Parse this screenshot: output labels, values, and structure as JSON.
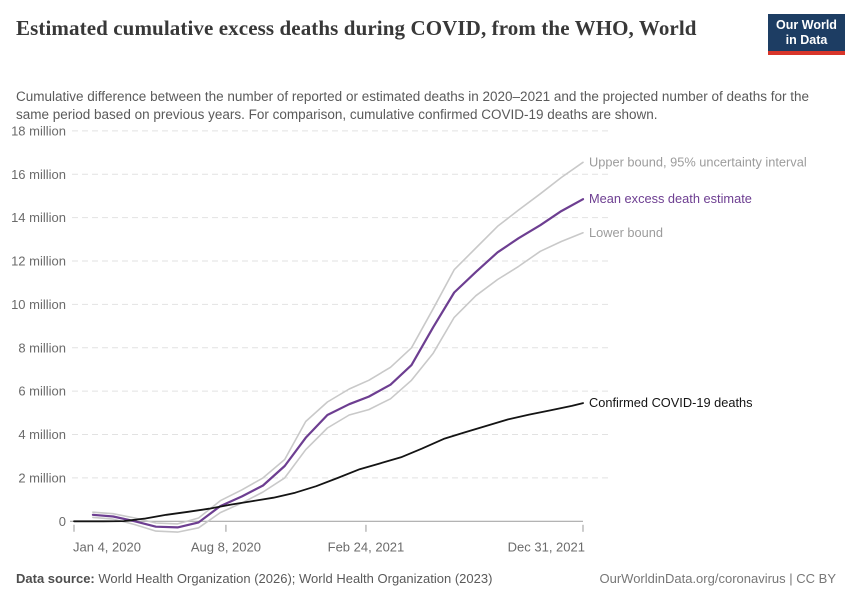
{
  "header": {
    "title": "Estimated cumulative excess deaths during COVID, from the WHO, World",
    "subtitle": "Cumulative difference between the number of reported or estimated deaths in 2020–2021 and the projected number of deaths for the same period based on previous years. For comparison, cumulative confirmed COVID-19 deaths are shown.",
    "logo": {
      "line1": "Our World",
      "line2": "in Data",
      "bg_color": "#1d3d63",
      "accent_color": "#d8352a"
    }
  },
  "footer": {
    "data_source_label": "Data source:",
    "data_source_value": " World Health Organization (2026); World Health Organization (2023)",
    "attribution": "OurWorldinData.org/coronavirus | CC BY"
  },
  "chart_data": {
    "type": "line",
    "title": "Estimated cumulative excess deaths during COVID, from the WHO, World",
    "xlabel": "",
    "ylabel": "",
    "y_unit": "million deaths",
    "ylim": [
      -0.6,
      18
    ],
    "grid": "horizontal-dashed",
    "legend_position": "labels-at-line-ends",
    "colors": {
      "gridline": "#e2e2e2",
      "zero_line": "#a8a8a8",
      "tick_text": "#6b6b6b",
      "bound_line": "#c9c9c9",
      "bound_label": "#9c9c9c",
      "mean_line": "#6d3e91",
      "confirmed_line": "#141414"
    },
    "y_ticks": [
      {
        "value": 0,
        "label": "0"
      },
      {
        "value": 2,
        "label": "2 million"
      },
      {
        "value": 4,
        "label": "4 million"
      },
      {
        "value": 6,
        "label": "6 million"
      },
      {
        "value": 8,
        "label": "8 million"
      },
      {
        "value": 10,
        "label": "10 million"
      },
      {
        "value": 12,
        "label": "12 million"
      },
      {
        "value": 14,
        "label": "14 million"
      },
      {
        "value": 16,
        "label": "16 million"
      },
      {
        "value": 18,
        "label": "18 million"
      }
    ],
    "x_ticks": [
      {
        "label": "Jan 4, 2020",
        "date": "2020-01-04",
        "align": "start"
      },
      {
        "label": "Aug 8, 2020",
        "date": "2020-08-08",
        "align": "middle"
      },
      {
        "label": "Feb 24, 2021",
        "date": "2021-02-24",
        "align": "middle"
      },
      {
        "label": "Dec 31, 2021",
        "date": "2021-12-31",
        "align": "end"
      }
    ],
    "series": [
      {
        "name": "Upper bound, 95% uncertainty interval",
        "color": "#c9c9c9",
        "label_color": "#9c9c9c",
        "width": 1.6,
        "points": [
          [
            "2020-01-31",
            0.42
          ],
          [
            "2020-02-29",
            0.35
          ],
          [
            "2020-03-31",
            0.15
          ],
          [
            "2020-04-30",
            -0.08
          ],
          [
            "2020-05-31",
            -0.12
          ],
          [
            "2020-06-30",
            0.15
          ],
          [
            "2020-07-31",
            0.95
          ],
          [
            "2020-08-31",
            1.45
          ],
          [
            "2020-09-30",
            2.0
          ],
          [
            "2020-10-31",
            2.85
          ],
          [
            "2020-11-30",
            4.6
          ],
          [
            "2020-12-31",
            5.5
          ],
          [
            "2021-01-31",
            6.1
          ],
          [
            "2021-02-28",
            6.5
          ],
          [
            "2021-03-31",
            7.1
          ],
          [
            "2021-04-30",
            8.0
          ],
          [
            "2021-05-31",
            9.8
          ],
          [
            "2021-06-30",
            11.6
          ],
          [
            "2021-07-31",
            12.6
          ],
          [
            "2021-08-31",
            13.6
          ],
          [
            "2021-09-30",
            14.35
          ],
          [
            "2021-10-31",
            15.1
          ],
          [
            "2021-11-30",
            15.85
          ],
          [
            "2021-12-31",
            16.55
          ]
        ]
      },
      {
        "name": "Mean excess death estimate",
        "color": "#6d3e91",
        "label_color": "#6d3e91",
        "width": 2.2,
        "points": [
          [
            "2020-01-31",
            0.3
          ],
          [
            "2020-02-29",
            0.22
          ],
          [
            "2020-03-31",
            0.0
          ],
          [
            "2020-04-30",
            -0.25
          ],
          [
            "2020-05-31",
            -0.28
          ],
          [
            "2020-06-30",
            -0.05
          ],
          [
            "2020-07-31",
            0.7
          ],
          [
            "2020-08-31",
            1.15
          ],
          [
            "2020-09-30",
            1.65
          ],
          [
            "2020-10-31",
            2.55
          ],
          [
            "2020-11-30",
            3.85
          ],
          [
            "2020-12-31",
            4.9
          ],
          [
            "2021-01-31",
            5.4
          ],
          [
            "2021-02-28",
            5.75
          ],
          [
            "2021-03-31",
            6.3
          ],
          [
            "2021-04-30",
            7.2
          ],
          [
            "2021-05-31",
            8.95
          ],
          [
            "2021-06-30",
            10.55
          ],
          [
            "2021-07-31",
            11.5
          ],
          [
            "2021-08-31",
            12.4
          ],
          [
            "2021-09-30",
            13.05
          ],
          [
            "2021-10-31",
            13.65
          ],
          [
            "2021-11-30",
            14.3
          ],
          [
            "2021-12-31",
            14.85
          ]
        ]
      },
      {
        "name": "Lower bound",
        "color": "#c9c9c9",
        "label_color": "#9c9c9c",
        "width": 1.6,
        "points": [
          [
            "2020-01-31",
            0.18
          ],
          [
            "2020-02-29",
            0.1
          ],
          [
            "2020-03-31",
            -0.15
          ],
          [
            "2020-04-30",
            -0.45
          ],
          [
            "2020-05-31",
            -0.5
          ],
          [
            "2020-06-30",
            -0.3
          ],
          [
            "2020-07-31",
            0.4
          ],
          [
            "2020-08-31",
            0.85
          ],
          [
            "2020-09-30",
            1.35
          ],
          [
            "2020-10-31",
            2.0
          ],
          [
            "2020-11-30",
            3.3
          ],
          [
            "2020-12-31",
            4.3
          ],
          [
            "2021-01-31",
            4.9
          ],
          [
            "2021-02-28",
            5.15
          ],
          [
            "2021-03-31",
            5.65
          ],
          [
            "2021-04-30",
            6.5
          ],
          [
            "2021-05-31",
            7.75
          ],
          [
            "2021-06-30",
            9.4
          ],
          [
            "2021-07-31",
            10.4
          ],
          [
            "2021-08-31",
            11.15
          ],
          [
            "2021-09-30",
            11.75
          ],
          [
            "2021-10-31",
            12.45
          ],
          [
            "2021-11-30",
            12.9
          ],
          [
            "2021-12-31",
            13.3
          ]
        ]
      },
      {
        "name": "Confirmed COVID-19 deaths",
        "color": "#141414",
        "label_color": "#141414",
        "width": 1.8,
        "points": [
          [
            "2020-01-04",
            0.0
          ],
          [
            "2020-02-15",
            0.0
          ],
          [
            "2020-03-15",
            0.01
          ],
          [
            "2020-04-15",
            0.13
          ],
          [
            "2020-05-15",
            0.3
          ],
          [
            "2020-06-15",
            0.44
          ],
          [
            "2020-07-15",
            0.58
          ],
          [
            "2020-08-15",
            0.77
          ],
          [
            "2020-09-15",
            0.93
          ],
          [
            "2020-10-15",
            1.09
          ],
          [
            "2020-11-15",
            1.32
          ],
          [
            "2020-12-15",
            1.62
          ],
          [
            "2021-01-15",
            2.0
          ],
          [
            "2021-02-15",
            2.4
          ],
          [
            "2021-03-15",
            2.66
          ],
          [
            "2021-04-15",
            2.95
          ],
          [
            "2021-05-15",
            3.35
          ],
          [
            "2021-06-15",
            3.8
          ],
          [
            "2021-07-15",
            4.1
          ],
          [
            "2021-08-15",
            4.4
          ],
          [
            "2021-09-15",
            4.7
          ],
          [
            "2021-10-15",
            4.92
          ],
          [
            "2021-11-15",
            5.12
          ],
          [
            "2021-12-15",
            5.32
          ],
          [
            "2021-12-31",
            5.45
          ]
        ]
      }
    ]
  }
}
